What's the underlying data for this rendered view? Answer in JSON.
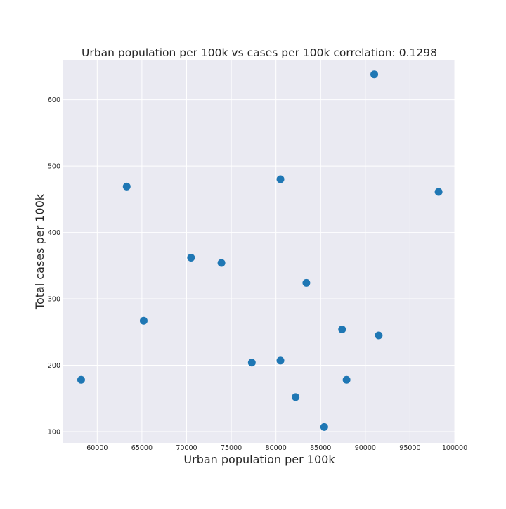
{
  "chart_data": {
    "type": "scatter",
    "title": "Urban population per 100k vs cases per 100k correlation: 0.1298",
    "xlabel": "Urban population per 100k",
    "ylabel": "Total cases per 100k",
    "xlim": [
      56200,
      100000
    ],
    "ylim": [
      83,
      660
    ],
    "x_ticks": [
      60000,
      65000,
      70000,
      75000,
      80000,
      85000,
      90000,
      95000,
      100000
    ],
    "y_ticks": [
      100,
      200,
      300,
      400,
      500,
      600
    ],
    "grid": true,
    "point_color": "#1f77b4",
    "background_color": "#eaeaf2",
    "grid_color": "#ffffff",
    "series": [
      {
        "x": [
          58200,
          63300,
          65200,
          70500,
          73900,
          77300,
          80500,
          80500,
          82200,
          83400,
          85400,
          87400,
          87900,
          91000,
          91500,
          98200
        ],
        "y": [
          178,
          469,
          267,
          362,
          354,
          204,
          480,
          207,
          152,
          324,
          107,
          254,
          178,
          638,
          245,
          461
        ]
      }
    ]
  }
}
